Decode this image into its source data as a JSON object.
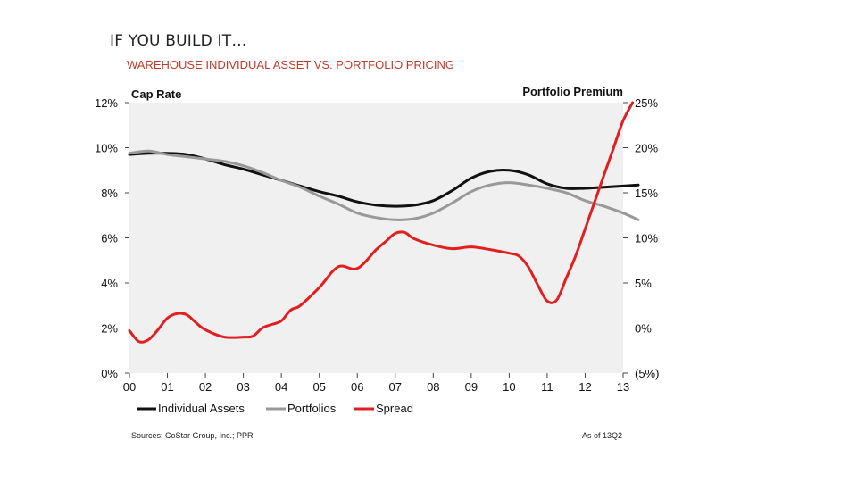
{
  "slide": {
    "title": "IF YOU BUILD IT…",
    "subtitle": "WAREHOUSE INDIVIDUAL ASSET VS. PORTFOLIO PRICING"
  },
  "colors": {
    "individual": "#111111",
    "portfolios": "#999999",
    "spread": "#e02020",
    "plot_bg": "#f0f0f0",
    "neg_label": "#e02020"
  },
  "chart_data": {
    "type": "line",
    "left_axis_title": "Cap Rate",
    "right_axis_title": "Portfolio Premium",
    "x_tick_labels": [
      "00",
      "01",
      "02",
      "03",
      "04",
      "05",
      "06",
      "07",
      "08",
      "09",
      "10",
      "11",
      "12",
      "13"
    ],
    "x_range": [
      2000,
      2013
    ],
    "left_ylim": [
      0,
      12
    ],
    "left_ticks": [
      0,
      2,
      4,
      6,
      8,
      10,
      12
    ],
    "left_tick_labels": [
      "0%",
      "2%",
      "4%",
      "6%",
      "8%",
      "10%",
      "12%"
    ],
    "right_ylim": [
      -5,
      25
    ],
    "right_ticks": [
      -5,
      0,
      5,
      10,
      15,
      20,
      25
    ],
    "right_tick_labels": [
      "(5%)",
      "0%",
      "5%",
      "10%",
      "15%",
      "20%",
      "25%"
    ],
    "grid": false,
    "legend_position": "bottom",
    "series": [
      {
        "name": "Individual Assets",
        "axis": "left",
        "x": [
          2000,
          2000.5,
          2001,
          2001.5,
          2002,
          2002.5,
          2003,
          2003.5,
          2004,
          2004.5,
          2005,
          2005.5,
          2006,
          2006.5,
          2007,
          2007.5,
          2008,
          2008.5,
          2009,
          2009.5,
          2010,
          2010.5,
          2011,
          2011.5,
          2012,
          2012.5,
          2013,
          2013.4
        ],
        "y": [
          9.7,
          9.75,
          9.75,
          9.7,
          9.5,
          9.25,
          9.05,
          8.8,
          8.55,
          8.3,
          8.05,
          7.85,
          7.6,
          7.45,
          7.4,
          7.45,
          7.65,
          8.1,
          8.65,
          8.95,
          9.0,
          8.8,
          8.4,
          8.2,
          8.2,
          8.25,
          8.3,
          8.35
        ]
      },
      {
        "name": "Portfolios",
        "axis": "left",
        "x": [
          2000,
          2000.5,
          2001,
          2001.5,
          2002,
          2002.5,
          2003,
          2003.5,
          2004,
          2004.5,
          2005,
          2005.5,
          2006,
          2006.5,
          2007,
          2007.5,
          2008,
          2008.5,
          2009,
          2009.5,
          2010,
          2010.5,
          2011,
          2011.5,
          2012,
          2012.5,
          2013,
          2013.4
        ],
        "y": [
          9.75,
          9.85,
          9.7,
          9.6,
          9.5,
          9.4,
          9.2,
          8.9,
          8.55,
          8.25,
          7.85,
          7.5,
          7.1,
          6.9,
          6.8,
          6.85,
          7.1,
          7.55,
          8.05,
          8.35,
          8.45,
          8.35,
          8.2,
          8.0,
          7.65,
          7.4,
          7.1,
          6.8
        ]
      },
      {
        "name": "Spread",
        "axis": "right",
        "x": [
          2000,
          2000.25,
          2000.5,
          2000.75,
          2001,
          2001.25,
          2001.5,
          2001.75,
          2002,
          2002.5,
          2003,
          2003.25,
          2003.5,
          2003.75,
          2004,
          2004.25,
          2004.5,
          2005,
          2005.5,
          2006,
          2006.5,
          2006.75,
          2007,
          2007.25,
          2007.5,
          2008,
          2008.5,
          2009,
          2009.5,
          2010,
          2010.25,
          2010.5,
          2010.75,
          2011,
          2011.25,
          2011.5,
          2011.75,
          2012,
          2012.25,
          2012.5,
          2012.75,
          2013,
          2013.25
        ],
        "y": [
          -0.3,
          -1.5,
          -1.3,
          -0.2,
          1.1,
          1.6,
          1.5,
          0.6,
          -0.2,
          -1.0,
          -1.0,
          -0.9,
          0.0,
          0.4,
          0.8,
          2.0,
          2.5,
          4.5,
          6.8,
          6.6,
          8.7,
          9.6,
          10.5,
          10.6,
          9.9,
          9.2,
          8.8,
          9.0,
          8.7,
          8.3,
          8.0,
          6.8,
          4.8,
          3.0,
          3.1,
          5.5,
          8.0,
          11.0,
          14.0,
          17.0,
          20.0,
          23.0,
          25.0
        ]
      }
    ],
    "source_note": "Sources: CoStar Group, Inc.; PPR",
    "as_of_note": "As of 13Q2"
  }
}
